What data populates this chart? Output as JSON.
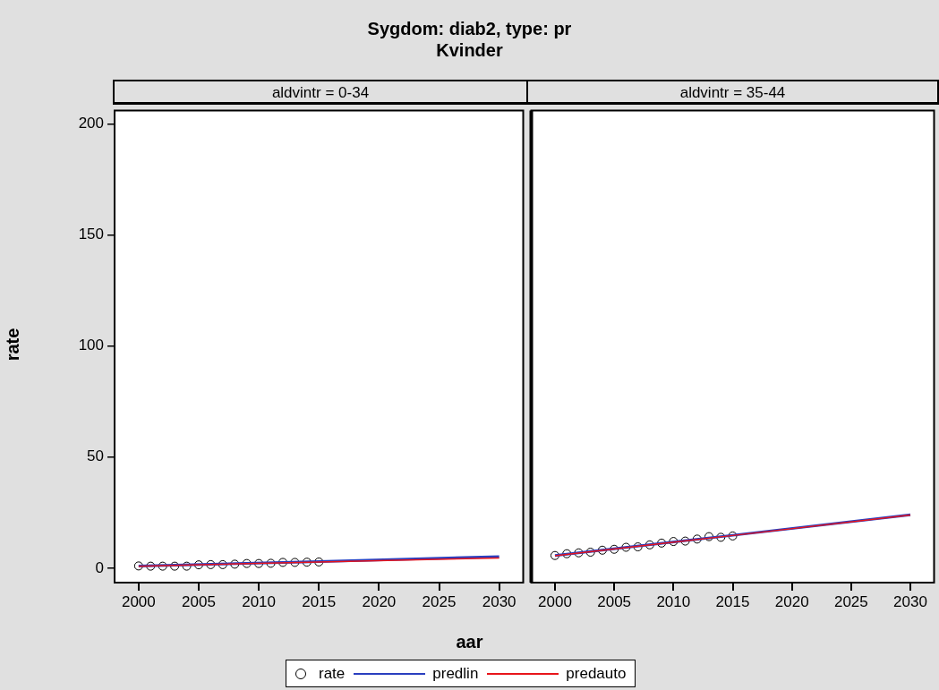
{
  "chart_data": [
    {
      "type": "scatter",
      "title": "Sygdom: diab2, type: pr",
      "subtitle": "Kvinder",
      "annotations": [
        "aldvintr = 0-34"
      ],
      "xlabel": "aar",
      "ylabel": "rate",
      "legend": "bottom",
      "grid": false,
      "xlim": [
        1998,
        2032
      ],
      "xticks": [
        2000,
        2005,
        2010,
        2015,
        2020,
        2025,
        2030
      ],
      "ylim": [
        -6.5,
        206
      ],
      "yticks": [
        0,
        50,
        100,
        150,
        200
      ],
      "series": [
        {
          "name": "rate",
          "marker": "circle",
          "color": "#000000",
          "x": [
            2000,
            2001,
            2002,
            2003,
            2004,
            2005,
            2006,
            2007,
            2008,
            2009,
            2010,
            2011,
            2012,
            2013,
            2014,
            2015
          ],
          "values": [
            1.0,
            0.9,
            0.9,
            0.9,
            0.9,
            1.5,
            1.6,
            1.6,
            1.8,
            2.1,
            2.1,
            2.2,
            2.6,
            2.6,
            2.7,
            2.8
          ]
        },
        {
          "name": "predlin",
          "type": "line",
          "marker": "none",
          "color": "#2a3fbf",
          "x": [
            2000,
            2015,
            2030
          ],
          "values": [
            1.0,
            3.0,
            5.2
          ]
        },
        {
          "name": "predauto",
          "type": "line",
          "marker": "none",
          "color": "#e8151b",
          "x": [
            2000,
            2015,
            2030
          ],
          "values": [
            0.9,
            2.8,
            4.6
          ]
        }
      ]
    },
    {
      "type": "scatter",
      "annotations": [
        "aldvintr = 35-44"
      ],
      "grid": false,
      "tick_labels": "x",
      "xlim": [
        1998,
        2032
      ],
      "xticks": [
        2000,
        2005,
        2010,
        2015,
        2020,
        2025,
        2030
      ],
      "ylim": [
        -6.5,
        206
      ],
      "yticks": [
        0,
        50,
        100,
        150,
        200
      ],
      "series": [
        {
          "marker": "circle",
          "color": "#000000",
          "x": [
            2000,
            2001,
            2002,
            2003,
            2004,
            2005,
            2006,
            2007,
            2008,
            2009,
            2010,
            2011,
            2012,
            2013,
            2014,
            2015
          ],
          "values": [
            5.7,
            6.5,
            6.9,
            7.2,
            8.1,
            8.5,
            9.4,
            9.6,
            10.5,
            11.3,
            12.0,
            12.2,
            13.1,
            14.2,
            13.9,
            14.5
          ]
        },
        {
          "type": "line",
          "marker": "none",
          "color": "#2a3fbf",
          "x": [
            2000,
            2015,
            2030
          ],
          "values": [
            5.7,
            14.8,
            24.0
          ]
        },
        {
          "type": "line",
          "marker": "none",
          "color": "#e8151b",
          "x": [
            2000,
            2015,
            2030
          ],
          "values": [
            5.6,
            14.7,
            23.9
          ]
        }
      ]
    }
  ]
}
